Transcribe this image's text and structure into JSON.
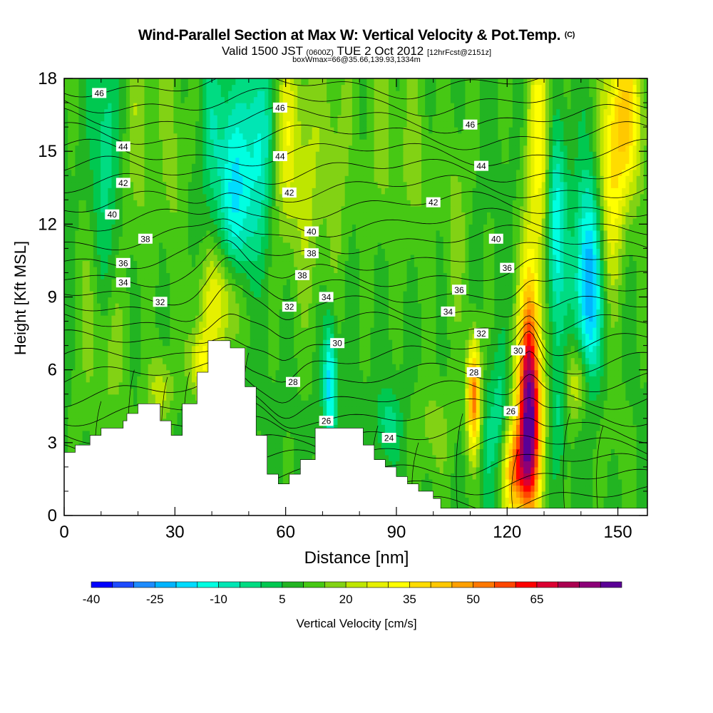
{
  "header": {
    "title_main": "Wind-Parallel Section at Max W: Vertical Velocity & Pot.Temp.",
    "title_copyright": "(C)",
    "valid_prefix": "Valid 1500 JST",
    "valid_utc": "(0600Z)",
    "valid_date": "TUE 2 Oct 2012",
    "forecast_info": "[12hrFcst@2151z]",
    "box_info": "boxWmax=66@35.66,139.93,1334m"
  },
  "chart_data": {
    "type": "heatmap",
    "title": "Wind-Parallel Section at Max W: Vertical Velocity & Pot.Temp.",
    "xlabel": "Distance [nm]",
    "ylabel": "Height [Kft MSL]",
    "xlim": [
      0,
      158
    ],
    "ylim": [
      0,
      18
    ],
    "x_ticks": [
      "0",
      "30",
      "60",
      "90",
      "120",
      "150"
    ],
    "y_ticks": [
      "0",
      "3",
      "6",
      "9",
      "12",
      "15",
      "18"
    ],
    "grid": false,
    "colorbar": {
      "label": "Vertical Velocity [cm/s]",
      "tick_labels": [
        "-40",
        "-25",
        "-10",
        "5",
        "20",
        "35",
        "50",
        "65"
      ],
      "levels": [
        -40,
        -35,
        -30,
        -25,
        -20,
        -15,
        -10,
        -5,
        0,
        5,
        10,
        15,
        20,
        25,
        30,
        35,
        40,
        45,
        50,
        55,
        60,
        65,
        70,
        75
      ],
      "colors": [
        "#0000ff",
        "#1e4bff",
        "#1e8cff",
        "#00b4ff",
        "#00dcff",
        "#00ffe1",
        "#00e6b4",
        "#00dc82",
        "#00c850",
        "#22b422",
        "#46c814",
        "#82d214",
        "#bee600",
        "#e6f000",
        "#ffff00",
        "#ffdc00",
        "#ffc800",
        "#ffa000",
        "#ff7800",
        "#ff4600",
        "#ff0000",
        "#dc0032",
        "#aa0050",
        "#8c0078",
        "#5a0096"
      ]
    },
    "contour_variable": "Potential Temperature",
    "contour_labels": [
      {
        "text": "46",
        "x": 9.5,
        "y": 17.4
      },
      {
        "text": "46",
        "x": 58.5,
        "y": 16.8
      },
      {
        "text": "46",
        "x": 110,
        "y": 16.1
      },
      {
        "text": "44",
        "x": 16,
        "y": 15.2
      },
      {
        "text": "44",
        "x": 58.5,
        "y": 14.8
      },
      {
        "text": "44",
        "x": 113,
        "y": 14.4
      },
      {
        "text": "42",
        "x": 16,
        "y": 13.7
      },
      {
        "text": "42",
        "x": 61,
        "y": 13.3
      },
      {
        "text": "42",
        "x": 100,
        "y": 12.9
      },
      {
        "text": "40",
        "x": 13,
        "y": 12.4
      },
      {
        "text": "40",
        "x": 67,
        "y": 11.7
      },
      {
        "text": "40",
        "x": 117,
        "y": 11.4
      },
      {
        "text": "38",
        "x": 22,
        "y": 11.4
      },
      {
        "text": "38",
        "x": 67,
        "y": 10.8
      },
      {
        "text": "38",
        "x": 64.5,
        "y": 9.9
      },
      {
        "text": "36",
        "x": 16,
        "y": 10.4
      },
      {
        "text": "36",
        "x": 120,
        "y": 10.2
      },
      {
        "text": "36",
        "x": 107,
        "y": 9.3
      },
      {
        "text": "34",
        "x": 16,
        "y": 9.6
      },
      {
        "text": "34",
        "x": 71,
        "y": 9.0
      },
      {
        "text": "34",
        "x": 104,
        "y": 8.4
      },
      {
        "text": "32",
        "x": 26,
        "y": 8.8
      },
      {
        "text": "32",
        "x": 61,
        "y": 8.6
      },
      {
        "text": "32",
        "x": 113,
        "y": 7.5
      },
      {
        "text": "30",
        "x": 74,
        "y": 7.1
      },
      {
        "text": "30",
        "x": 123,
        "y": 6.8
      },
      {
        "text": "28",
        "x": 62,
        "y": 5.5
      },
      {
        "text": "28",
        "x": 111,
        "y": 5.9
      },
      {
        "text": "26",
        "x": 71,
        "y": 3.9
      },
      {
        "text": "26",
        "x": 121,
        "y": 4.3
      },
      {
        "text": "24",
        "x": 88,
        "y": 3.2
      }
    ],
    "terrain": [
      {
        "x": 0,
        "y": 2.6
      },
      {
        "x": 3,
        "y": 2.9
      },
      {
        "x": 7,
        "y": 3.3
      },
      {
        "x": 10,
        "y": 3.6
      },
      {
        "x": 16,
        "y": 3.9
      },
      {
        "x": 17,
        "y": 4.2
      },
      {
        "x": 20,
        "y": 4.6
      },
      {
        "x": 26,
        "y": 3.9
      },
      {
        "x": 29,
        "y": 3.3
      },
      {
        "x": 32,
        "y": 4.6
      },
      {
        "x": 36,
        "y": 5.9
      },
      {
        "x": 39,
        "y": 7.2
      },
      {
        "x": 45,
        "y": 6.9
      },
      {
        "x": 49,
        "y": 5.3
      },
      {
        "x": 52,
        "y": 3.3
      },
      {
        "x": 55,
        "y": 1.7
      },
      {
        "x": 58,
        "y": 1.3
      },
      {
        "x": 61,
        "y": 1.7
      },
      {
        "x": 64,
        "y": 2.3
      },
      {
        "x": 68,
        "y": 3.6
      },
      {
        "x": 78,
        "y": 3.6
      },
      {
        "x": 81,
        "y": 2.9
      },
      {
        "x": 84,
        "y": 2.3
      },
      {
        "x": 87,
        "y": 2.0
      },
      {
        "x": 90,
        "y": 1.6
      },
      {
        "x": 93,
        "y": 1.3
      },
      {
        "x": 96,
        "y": 1.0
      },
      {
        "x": 100,
        "y": 0.7
      },
      {
        "x": 102,
        "y": 0.3
      },
      {
        "x": 158,
        "y": 0.3
      }
    ],
    "velocity_features": [
      {
        "x": 43,
        "y": 8.9,
        "sx": 4.5,
        "sy": 1.6,
        "value": 22
      },
      {
        "x": 37,
        "y": 6.3,
        "sx": 2.5,
        "sy": 1.0,
        "value": 20
      },
      {
        "x": 26,
        "y": 5.2,
        "sx": 2.5,
        "sy": 1.0,
        "value": 14
      },
      {
        "x": 66,
        "y": 14.0,
        "sx": 3.0,
        "sy": 4.0,
        "value": 12
      },
      {
        "x": 53,
        "y": 15.5,
        "sx": 2.5,
        "sy": 3.0,
        "value": -20
      },
      {
        "x": 60,
        "y": 15.5,
        "sx": 2.3,
        "sy": 3.0,
        "value": 18
      },
      {
        "x": 45,
        "y": 14.0,
        "sx": 2.5,
        "sy": 3.0,
        "value": -18
      },
      {
        "x": 48,
        "y": 12.0,
        "sx": 2.5,
        "sy": 3.0,
        "value": -15
      },
      {
        "x": 74,
        "y": 15.0,
        "sx": 3.0,
        "sy": 4.0,
        "value": 8
      },
      {
        "x": 29,
        "y": 15.5,
        "sx": 2.5,
        "sy": 4.0,
        "value": 8
      },
      {
        "x": 20,
        "y": 16.0,
        "sx": 2.5,
        "sy": 4.0,
        "value": 9
      },
      {
        "x": 11,
        "y": 15.5,
        "sx": 2.5,
        "sy": 4.0,
        "value": -12
      },
      {
        "x": 40,
        "y": 16.0,
        "sx": 2.0,
        "sy": 3.0,
        "value": -10
      },
      {
        "x": 86,
        "y": 16.0,
        "sx": 3.0,
        "sy": 3.5,
        "value": 8
      },
      {
        "x": 95,
        "y": 14.5,
        "sx": 3.0,
        "sy": 3.0,
        "value": 8
      },
      {
        "x": 72,
        "y": 5.5,
        "sx": 1.3,
        "sy": 1.8,
        "value": -28
      },
      {
        "x": 88,
        "y": 3.8,
        "sx": 2.5,
        "sy": 1.0,
        "value": -12
      },
      {
        "x": 111,
        "y": 5.0,
        "sx": 1.3,
        "sy": 1.6,
        "value": 45
      },
      {
        "x": 126,
        "y": 3.8,
        "sx": 2.3,
        "sy": 2.8,
        "value": 70
      },
      {
        "x": 122,
        "y": 1.8,
        "sx": 2.5,
        "sy": 1.4,
        "value": 35
      },
      {
        "x": 139,
        "y": 5.5,
        "sx": 2.5,
        "sy": 1.2,
        "value": 18
      },
      {
        "x": 118,
        "y": 4.0,
        "sx": 1.5,
        "sy": 2.0,
        "value": -12
      },
      {
        "x": 115,
        "y": 3.0,
        "sx": 1.5,
        "sy": 2.0,
        "value": -8
      },
      {
        "x": 134,
        "y": 4.5,
        "sx": 1.5,
        "sy": 2.0,
        "value": -10
      },
      {
        "x": 129,
        "y": 15.0,
        "sx": 2.5,
        "sy": 4.0,
        "value": 25
      },
      {
        "x": 142,
        "y": 9.5,
        "sx": 2.5,
        "sy": 3.0,
        "value": -35
      },
      {
        "x": 133,
        "y": 12.0,
        "sx": 2.0,
        "sy": 3.0,
        "value": -28
      },
      {
        "x": 152,
        "y": 16.5,
        "sx": 3.5,
        "sy": 2.5,
        "value": 30
      },
      {
        "x": 148,
        "y": 13.0,
        "sx": 2.5,
        "sy": 3.0,
        "value": 18
      },
      {
        "x": 126,
        "y": 8.2,
        "sx": 1.8,
        "sy": 2.5,
        "value": 22
      },
      {
        "x": 106,
        "y": 12.0,
        "sx": 2.5,
        "sy": 3.0,
        "value": 8
      },
      {
        "x": 100,
        "y": 3.5,
        "sx": 4.0,
        "sy": 1.5,
        "value": 8
      },
      {
        "x": 148,
        "y": 3.5,
        "sx": 4.0,
        "sy": 2.0,
        "value": 3
      },
      {
        "x": 6,
        "y": 8.0,
        "sx": 3.0,
        "sy": 3.0,
        "value": 6
      },
      {
        "x": 13,
        "y": 6.5,
        "sx": 3.0,
        "sy": 2.0,
        "value": 8
      }
    ]
  }
}
